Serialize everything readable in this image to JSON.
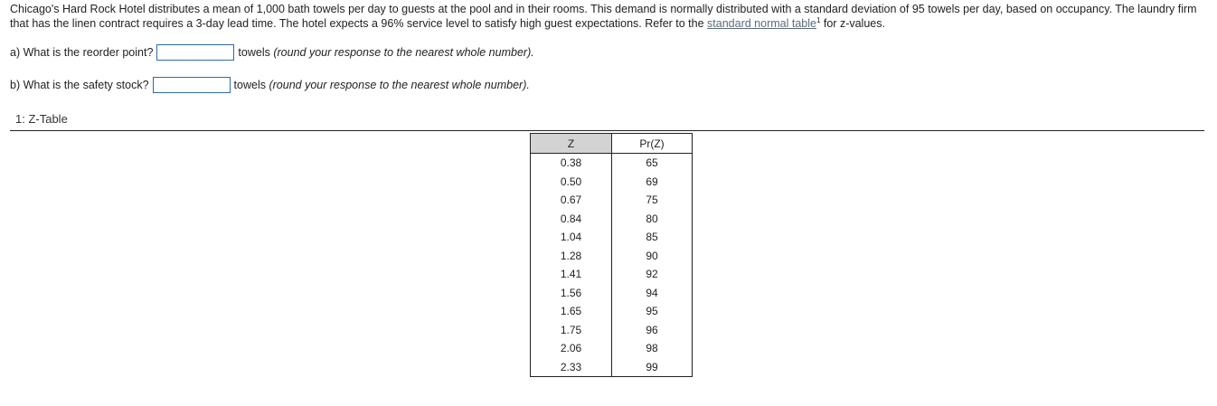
{
  "problem": {
    "text_before_link": "Chicago's Hard Rock Hotel distributes a mean of 1,000 bath towels per day to guests at the pool and in their rooms. This demand is normally distributed with a standard deviation of 95 towels per day, based on occupancy. The laundry firm that has the linen contract requires a 3-day lead time. The hotel expects a 96% service level to satisfy high guest expectations. Refer to the ",
    "link_text": "standard normal table",
    "link_sup": "1",
    "text_after_link": " for z-values."
  },
  "questions": [
    {
      "label": "a) What is the reorder point?",
      "value": "",
      "unit": "towels",
      "hint": "(round your response to the nearest whole number)."
    },
    {
      "label": "b) What is the safety stock?",
      "value": "",
      "unit": "towels",
      "hint": "(round your response to the nearest whole number)."
    }
  ],
  "footnote": {
    "label": "1: Z-Table"
  },
  "ztable": {
    "headers": [
      "Z",
      "Pr(Z)"
    ],
    "rows": [
      [
        "0.38",
        "65"
      ],
      [
        "0.50",
        "69"
      ],
      [
        "0.67",
        "75"
      ],
      [
        "0.84",
        "80"
      ],
      [
        "1.04",
        "85"
      ],
      [
        "1.28",
        "90"
      ],
      [
        "1.41",
        "92"
      ],
      [
        "1.56",
        "94"
      ],
      [
        "1.65",
        "95"
      ],
      [
        "1.75",
        "96"
      ],
      [
        "2.06",
        "98"
      ],
      [
        "2.33",
        "99"
      ]
    ]
  }
}
